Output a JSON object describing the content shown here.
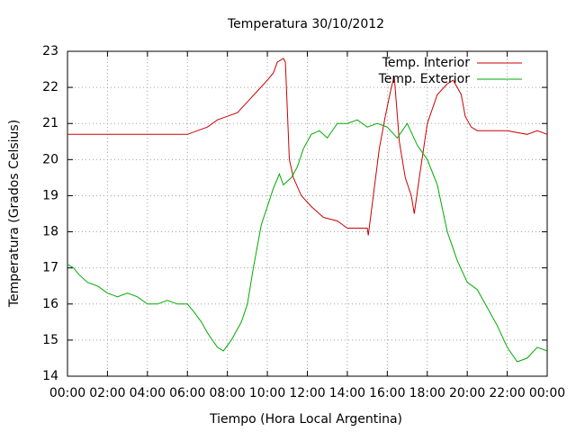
{
  "chart_data": {
    "type": "line",
    "title": "Temperatura 30/10/2012",
    "xlabel": "Tiempo (Hora Local Argentina)",
    "ylabel": "Temperatura (Grados Celsius)",
    "xlim": [
      0,
      24
    ],
    "xticks": [
      {
        "value": 0,
        "label": "00:00"
      },
      {
        "value": 2,
        "label": "02:00"
      },
      {
        "value": 4,
        "label": "04:00"
      },
      {
        "value": 6,
        "label": "06:00"
      },
      {
        "value": 8,
        "label": "08:00"
      },
      {
        "value": 10,
        "label": "10:00"
      },
      {
        "value": 12,
        "label": "12:00"
      },
      {
        "value": 14,
        "label": "14:00"
      },
      {
        "value": 16,
        "label": "16:00"
      },
      {
        "value": 18,
        "label": "18:00"
      },
      {
        "value": 20,
        "label": "20:00"
      },
      {
        "value": 22,
        "label": "22:00"
      },
      {
        "value": 24,
        "label": "00:00"
      }
    ],
    "ylim": [
      14,
      23
    ],
    "yticks": [
      14,
      15,
      16,
      17,
      18,
      19,
      20,
      21,
      22,
      23
    ],
    "grid": true,
    "legend": "top-right",
    "series": [
      {
        "name": "Temp. Interior",
        "color": "#cc0000",
        "x": [
          0,
          1.5,
          3,
          6,
          6.5,
          7,
          7.5,
          8,
          8.5,
          9,
          9.5,
          10,
          10.3,
          10.5,
          10.8,
          10.9,
          11.1,
          11.3,
          11.7,
          12.2,
          12.8,
          13.5,
          14,
          15,
          15.05,
          15.3,
          15.6,
          15.9,
          16.2,
          16.35,
          16.6,
          16.9,
          17.2,
          17.35,
          17.6,
          18,
          18.5,
          19,
          19.3,
          19.7,
          19.9,
          20.2,
          20.5,
          22,
          23,
          23.5,
          24
        ],
        "values": [
          20.7,
          20.7,
          20.7,
          20.7,
          20.8,
          20.9,
          21.1,
          21.2,
          21.3,
          21.6,
          21.9,
          22.2,
          22.4,
          22.7,
          22.8,
          22.7,
          20,
          19.5,
          19,
          18.7,
          18.4,
          18.3,
          18.1,
          18.1,
          17.9,
          19,
          20.3,
          21.2,
          22,
          22.3,
          20.5,
          19.5,
          19,
          18.5,
          19.5,
          21,
          21.8,
          22.1,
          22.2,
          21.8,
          21.2,
          20.9,
          20.8,
          20.8,
          20.7,
          20.8,
          20.7
        ]
      },
      {
        "name": "Temp. Exterior",
        "color": "#00aa00",
        "x": [
          0,
          0.3,
          0.6,
          1,
          1.5,
          2,
          2.5,
          3,
          3.5,
          4,
          4.5,
          5,
          5.5,
          6,
          6.3,
          6.7,
          7,
          7.5,
          7.8,
          8.2,
          8.7,
          9,
          9.3,
          9.7,
          10,
          10.3,
          10.6,
          10.8,
          11.2,
          11.5,
          11.8,
          12.2,
          12.6,
          13,
          13.5,
          14,
          14.5,
          15,
          15.5,
          16,
          16.5,
          17,
          17.5,
          18,
          18.5,
          19,
          19.5,
          20,
          20.5,
          21,
          21.5,
          22,
          22.5,
          23,
          23.5,
          24
        ],
        "values": [
          17.1,
          17,
          16.8,
          16.6,
          16.5,
          16.3,
          16.2,
          16.3,
          16.2,
          16,
          16,
          16.1,
          16,
          16,
          15.8,
          15.5,
          15.2,
          14.8,
          14.7,
          15,
          15.5,
          16,
          17,
          18.2,
          18.7,
          19.2,
          19.6,
          19.3,
          19.5,
          19.8,
          20.3,
          20.7,
          20.8,
          20.6,
          21,
          21,
          21.1,
          20.9,
          21,
          20.9,
          20.6,
          21,
          20.4,
          20,
          19.3,
          18,
          17.2,
          16.6,
          16.4,
          15.9,
          15.4,
          14.8,
          14.4,
          14.5,
          14.8,
          14.7
        ]
      }
    ]
  }
}
